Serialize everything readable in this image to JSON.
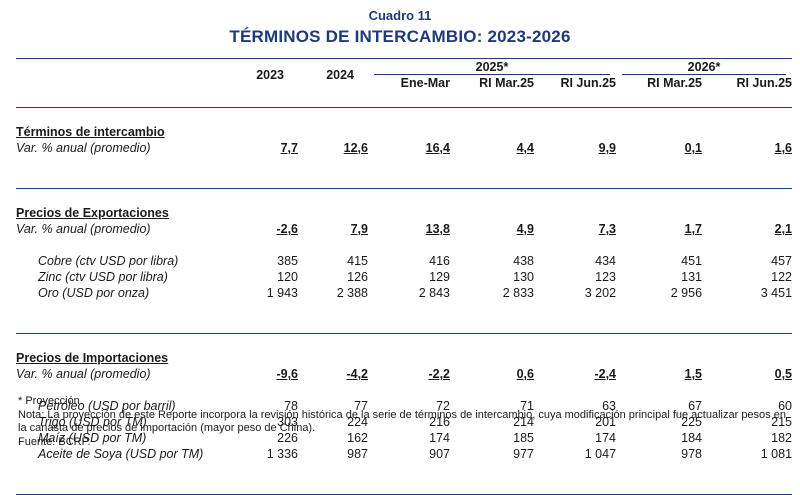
{
  "header": {
    "cuadro": "Cuadro 11",
    "title": "TÉRMINOS DE INTERCAMBIO: 2023-2026"
  },
  "columns": {
    "y2023": "2023",
    "y2024": "2024",
    "g2025": "2025*",
    "g2026": "2026*",
    "sub2025": [
      "Ene-Mar",
      "RI Mar.25",
      "RI Jun.25"
    ],
    "sub2026": [
      "RI Mar.25",
      "RI Jun.25"
    ]
  },
  "sections": [
    {
      "title": "Términos de intercambio",
      "var_label": "Var. % anual (promedio)",
      "var_values": [
        "7,7",
        "12,6",
        "16,4",
        "4,4",
        "9,9",
        "0,1",
        "1,6"
      ],
      "items": []
    },
    {
      "title": "Precios de Exportaciones",
      "var_label": "Var. % anual (promedio)",
      "var_values": [
        "-2,6",
        "7,9",
        "13,8",
        "4,9",
        "7,3",
        "1,7",
        "2,1"
      ],
      "items": [
        {
          "label": "Cobre (ctv USD por libra)",
          "values": [
            "385",
            "415",
            "416",
            "438",
            "434",
            "451",
            "457"
          ]
        },
        {
          "label": "Zinc (ctv USD por libra)",
          "values": [
            "120",
            "126",
            "129",
            "130",
            "123",
            "131",
            "122"
          ]
        },
        {
          "label": "Oro (USD por onza)",
          "values": [
            "1 943",
            "2 388",
            "2 843",
            "2 833",
            "3 202",
            "2 956",
            "3 451"
          ]
        }
      ]
    },
    {
      "title": "Precios de Importaciones",
      "var_label": "Var. % anual (promedio)",
      "var_values": [
        "-9,6",
        "-4,2",
        "-2,2",
        "0,6",
        "-2,4",
        "1,5",
        "0,5"
      ],
      "items": [
        {
          "label": "Petróleo (USD por barril)",
          "values": [
            "78",
            "77",
            "72",
            "71",
            "63",
            "67",
            "60"
          ]
        },
        {
          "label": "Trigo (USD por TM)",
          "values": [
            "303",
            "224",
            "216",
            "214",
            "201",
            "225",
            "215"
          ]
        },
        {
          "label": "Maíz (USD por TM)",
          "values": [
            "226",
            "162",
            "174",
            "185",
            "174",
            "184",
            "182"
          ]
        },
        {
          "label": "Aceite de Soya (USD por TM)",
          "values": [
            "1 336",
            "987",
            "907",
            "977",
            "1 047",
            "978",
            "1 081"
          ]
        }
      ]
    }
  ],
  "notes": {
    "projection": "* Proyección.",
    "nota": "Nota: La proyección de este Reporte incorpora la revisión histórica de la serie de términos de intercambio, cuya modificación principal fue actualizar pesos en la canasta de precios de importación (mayor peso de China).",
    "fuente": "Fuente: BCRP."
  },
  "colors": {
    "title_blue": "#1f3a78",
    "text": "#1a1a1a"
  }
}
